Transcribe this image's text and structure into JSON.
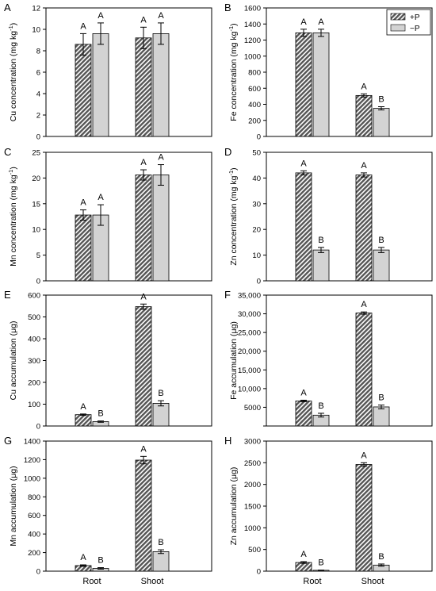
{
  "categories": [
    "Root",
    "Shoot"
  ],
  "legend": {
    "plus_label": "+P",
    "minus_label": "−P"
  },
  "colors": {
    "plus_fill": "#555555",
    "minus_fill": "#d3d3d3",
    "stroke": "#000000"
  },
  "chart_data": [
    {
      "letter": "A",
      "type": "bar",
      "ylabel": "Cu concentration (mg kg",
      "ylabel_sup": "-1",
      "ylabel_tail": ")",
      "ylim": [
        0,
        12
      ],
      "ticks": [
        "0",
        "2",
        "4",
        "6",
        "8",
        "10",
        "12"
      ],
      "categories": [
        "Root",
        "Shoot"
      ],
      "series": [
        {
          "name": "+P",
          "values": [
            8.6,
            9.2
          ],
          "errors": [
            1.0,
            1.0
          ],
          "sig": [
            "A",
            "A"
          ]
        },
        {
          "name": "−P",
          "values": [
            9.6,
            9.6
          ],
          "errors": [
            1.0,
            1.0
          ],
          "sig": [
            "A",
            "A"
          ]
        }
      ]
    },
    {
      "letter": "B",
      "type": "bar",
      "ylabel": "Fe concentration (mg kg",
      "ylabel_sup": "-1",
      "ylabel_tail": ")",
      "ylim": [
        0,
        1600
      ],
      "ticks": [
        "0",
        "200",
        "400",
        "600",
        "800",
        "1000",
        "1200",
        "1400",
        "1600"
      ],
      "categories": [
        "Root",
        "Shoot"
      ],
      "legend_position": "top-right",
      "series": [
        {
          "name": "+P",
          "values": [
            1290,
            510
          ],
          "errors": [
            45,
            20
          ],
          "sig": [
            "A",
            "A"
          ]
        },
        {
          "name": "−P",
          "values": [
            1290,
            350
          ],
          "errors": [
            45,
            20
          ],
          "sig": [
            "A",
            "B"
          ]
        }
      ]
    },
    {
      "letter": "C",
      "type": "bar",
      "ylabel": "Mn concentration (mg kg",
      "ylabel_sup": "-1",
      "ylabel_tail": ")",
      "ylim": [
        0,
        25
      ],
      "ticks": [
        "0",
        "5",
        "10",
        "15",
        "20",
        "25"
      ],
      "categories": [
        "Root",
        "Shoot"
      ],
      "series": [
        {
          "name": "+P",
          "values": [
            12.8,
            20.6
          ],
          "errors": [
            1.0,
            1.0
          ],
          "sig": [
            "A",
            "A"
          ]
        },
        {
          "name": "−P",
          "values": [
            12.8,
            20.6
          ],
          "errors": [
            2.0,
            2.0
          ],
          "sig": [
            "A",
            "A"
          ]
        }
      ]
    },
    {
      "letter": "D",
      "type": "bar",
      "ylabel": "Zn concentration (mg kg",
      "ylabel_sup": "-1",
      "ylabel_tail": ")",
      "ylim": [
        0,
        50
      ],
      "ticks": [
        "0",
        "10",
        "20",
        "30",
        "40",
        "50"
      ],
      "categories": [
        "Root",
        "Shoot"
      ],
      "series": [
        {
          "name": "+P",
          "values": [
            42,
            41.2
          ],
          "errors": [
            0.8,
            0.8
          ],
          "sig": [
            "A",
            "A"
          ]
        },
        {
          "name": "−P",
          "values": [
            12,
            12
          ],
          "errors": [
            1.0,
            1.0
          ],
          "sig": [
            "B",
            "B"
          ]
        }
      ]
    },
    {
      "letter": "E",
      "type": "bar",
      "ylabel": "Cu accumulation (μg)",
      "ylabel_sup": "",
      "ylabel_tail": "",
      "ylim": [
        0,
        600
      ],
      "ticks": [
        "0",
        "100",
        "200",
        "300",
        "400",
        "500",
        "600"
      ],
      "categories": [
        "Root",
        "Shoot"
      ],
      "series": [
        {
          "name": "+P",
          "values": [
            52,
            547
          ],
          "errors": [
            3,
            12
          ],
          "sig": [
            "A",
            "A"
          ]
        },
        {
          "name": "−P",
          "values": [
            20,
            104
          ],
          "errors": [
            3,
            12
          ],
          "sig": [
            "B",
            "B"
          ]
        }
      ]
    },
    {
      "letter": "F",
      "type": "bar",
      "ylabel": "Fe accumulation (μg)",
      "ylabel_sup": "",
      "ylabel_tail": "",
      "ylim": [
        0,
        35000
      ],
      "ticks": [
        "",
        "5000",
        "10,000",
        "15,000",
        "20,000",
        "25,000",
        "30,000",
        "35,000"
      ],
      "categories": [
        "Root",
        "Shoot"
      ],
      "series": [
        {
          "name": "+P",
          "values": [
            6700,
            30200
          ],
          "errors": [
            200,
            300
          ],
          "sig": [
            "A",
            "A"
          ]
        },
        {
          "name": "−P",
          "values": [
            2900,
            5100
          ],
          "errors": [
            500,
            500
          ],
          "sig": [
            "B",
            "B"
          ]
        }
      ]
    },
    {
      "letter": "G",
      "type": "bar",
      "ylabel": "Mn accumulation (μg)",
      "ylabel_sup": "",
      "ylabel_tail": "",
      "ylim": [
        0,
        1400
      ],
      "ticks": [
        "0",
        "200",
        "400",
        "600",
        "800",
        "1000",
        "1200",
        "1400"
      ],
      "categories": [
        "Root",
        "Shoot"
      ],
      "series": [
        {
          "name": "+P",
          "values": [
            60,
            1195
          ],
          "errors": [
            8,
            40
          ],
          "sig": [
            "A",
            "A"
          ]
        },
        {
          "name": "−P",
          "values": [
            30,
            210
          ],
          "errors": [
            8,
            20
          ],
          "sig": [
            "B",
            "B"
          ]
        }
      ]
    },
    {
      "letter": "H",
      "type": "bar",
      "ylabel": "Zn accumulation (μg)",
      "ylabel_sup": "",
      "ylabel_tail": "",
      "ylim": [
        0,
        3000
      ],
      "ticks": [
        "0",
        "500",
        "1000",
        "1500",
        "2000",
        "2500",
        "3000"
      ],
      "categories": [
        "Root",
        "Shoot"
      ],
      "series": [
        {
          "name": "+P",
          "values": [
            200,
            2460
          ],
          "errors": [
            20,
            40
          ],
          "sig": [
            "A",
            "A"
          ]
        },
        {
          "name": "−P",
          "values": [
            20,
            140
          ],
          "errors": [
            5,
            25
          ],
          "sig": [
            "B",
            "B"
          ]
        }
      ]
    }
  ]
}
